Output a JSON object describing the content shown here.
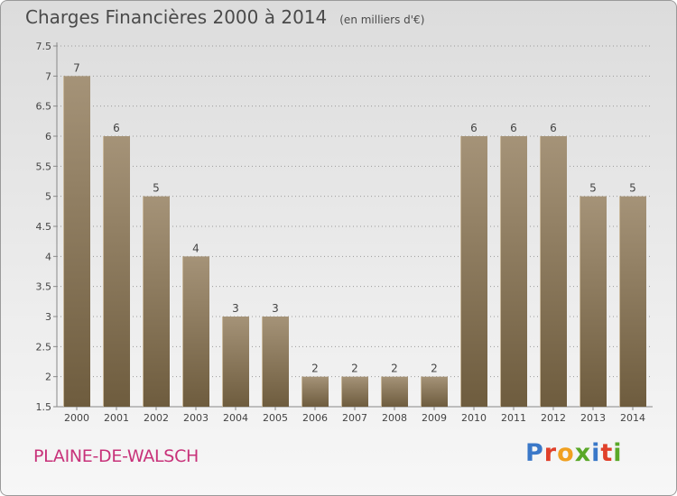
{
  "header": {
    "title": "Charges Financières 2000 à 2014",
    "subtitle": "(en milliers d'€)"
  },
  "town": "PLAINE-DE-WALSCH",
  "logo": {
    "text": "Proxiti",
    "letter_colors": [
      "#3a78c8",
      "#e0402a",
      "#f0a020",
      "#5aa828",
      "#3a78c8",
      "#e0402a",
      "#5aa828"
    ]
  },
  "colors": {
    "bar_top": "#a59378",
    "bar_bottom": "#6e5c3e",
    "axis": "#888888",
    "grid": "#9a9a9a"
  },
  "chart_data": {
    "type": "bar",
    "title": "Charges Financières 2000 à 2014",
    "subtitle": "(en milliers d'€)",
    "categories": [
      "2000",
      "2001",
      "2002",
      "2003",
      "2004",
      "2005",
      "2006",
      "2007",
      "2008",
      "2009",
      "2010",
      "2011",
      "2012",
      "2013",
      "2014"
    ],
    "values": [
      7,
      6,
      5,
      4,
      3,
      3,
      2,
      2,
      2,
      2,
      6,
      6,
      6,
      5,
      5
    ],
    "ylim": [
      1.5,
      7.5
    ],
    "yticks": [
      "1.5",
      "2",
      "2.5",
      "3",
      "3.5",
      "4",
      "4.5",
      "5",
      "5.5",
      "6",
      "6.5",
      "7",
      "7.5"
    ],
    "grid": true,
    "legend": "none"
  }
}
